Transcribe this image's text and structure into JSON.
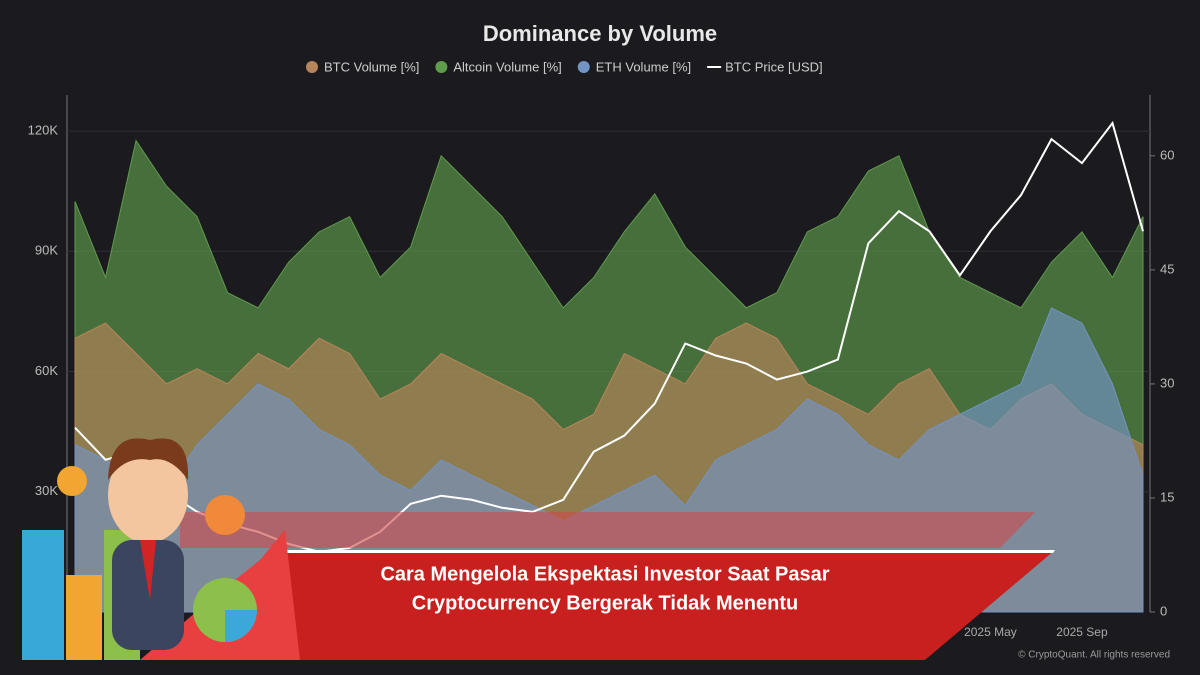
{
  "chart_data": {
    "type": "area",
    "title": "Dominance by Volume",
    "categories": [
      null,
      null,
      null,
      null,
      null,
      null,
      null,
      null,
      null,
      null,
      null,
      null,
      null,
      null,
      null,
      null,
      null,
      null,
      null,
      null,
      null,
      null,
      null,
      null,
      null,
      null,
      null,
      null,
      null,
      null,
      "2025 May",
      null,
      null,
      "2025 Sep",
      null,
      null
    ],
    "series": [
      {
        "name": "Altcoin Volume [%]",
        "color": "#5f9c4c",
        "axis": "y2",
        "values": [
          54,
          44,
          62,
          56,
          52,
          42,
          40,
          46,
          50,
          52,
          44,
          48,
          60,
          56,
          52,
          46,
          40,
          44,
          50,
          55,
          48,
          44,
          40,
          42,
          50,
          52,
          58,
          60,
          50,
          44,
          42,
          40,
          46,
          50,
          44,
          52
        ]
      },
      {
        "name": "BTC Volume [%]",
        "color": "#b8845a",
        "axis": "y2",
        "values": [
          36,
          38,
          34,
          30,
          32,
          30,
          34,
          32,
          36,
          34,
          28,
          30,
          34,
          32,
          30,
          28,
          24,
          26,
          34,
          32,
          30,
          36,
          38,
          36,
          30,
          28,
          26,
          30,
          32,
          26,
          24,
          28,
          30,
          26,
          24,
          22
        ]
      },
      {
        "name": "ETH Volume [%]",
        "color": "#7393c4",
        "axis": "y2",
        "values": [
          22,
          20,
          18,
          16,
          22,
          26,
          30,
          28,
          24,
          22,
          18,
          16,
          20,
          18,
          16,
          14,
          12,
          14,
          16,
          18,
          14,
          20,
          22,
          24,
          28,
          26,
          22,
          20,
          24,
          26,
          28,
          30,
          40,
          38,
          30,
          18
        ]
      },
      {
        "name": "BTC Price [USD]",
        "color": "#ffffff",
        "line": true,
        "values": [
          46000,
          38000,
          40000,
          30000,
          25000,
          22000,
          20000,
          17000,
          15000,
          16000,
          20000,
          27000,
          29000,
          28000,
          26000,
          25000,
          28000,
          40000,
          44000,
          52000,
          67000,
          64000,
          62000,
          58000,
          60000,
          63000,
          92000,
          100000,
          95000,
          84000,
          95000,
          104000,
          118000,
          112000,
          122000,
          95000
        ]
      }
    ],
    "legend_order": [
      1,
      0,
      2,
      3
    ],
    "ylim": [
      0,
      129000
    ],
    "yticks": [
      {
        "value": 30000,
        "label": "30K"
      },
      {
        "value": 60000,
        "label": "60K"
      },
      {
        "value": 90000,
        "label": "90K"
      },
      {
        "value": 120000,
        "label": "120K"
      }
    ],
    "y2lim": [
      0,
      68
    ],
    "y2ticks": [
      0,
      15,
      30,
      45,
      60
    ],
    "credit": "© CryptoQuant. All rights reserved"
  },
  "banner": {
    "lines": [
      "Cara Mengelola Ekspektasi Investor Saat Pasar",
      "Cryptocurrency Bergerak Tidak Menentu"
    ]
  }
}
